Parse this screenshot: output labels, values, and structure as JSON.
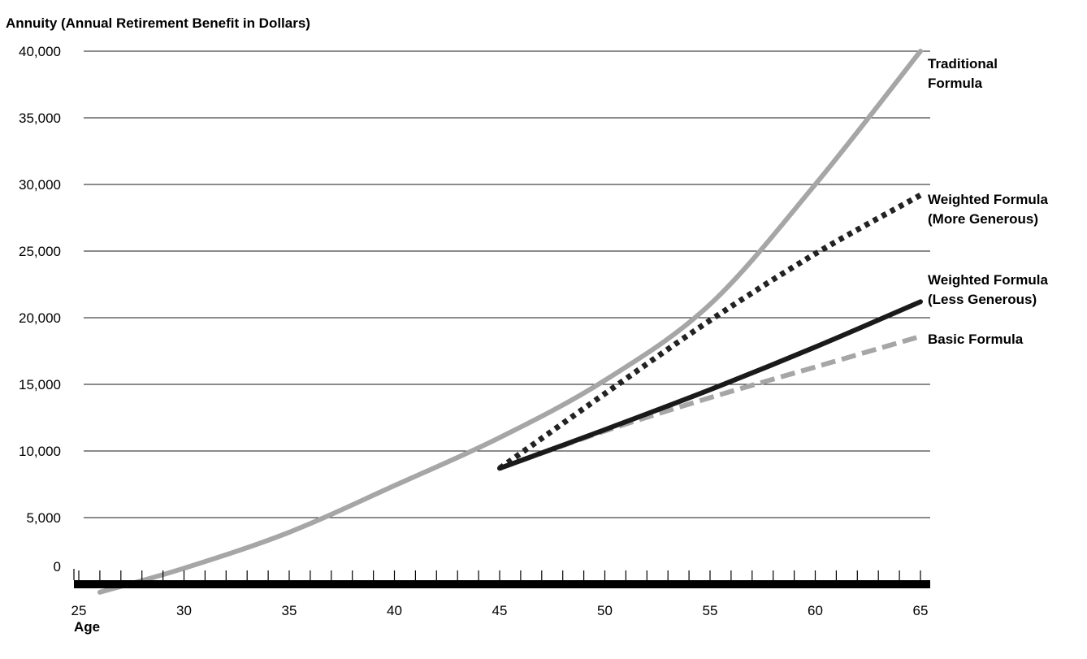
{
  "chart_data": {
    "type": "line",
    "title": "Annuity (Annual Retirement Benefit in Dollars)",
    "xlabel": "Age",
    "ylabel": "",
    "xlim": [
      25,
      65
    ],
    "ylim": [
      0,
      40000
    ],
    "x_ticks": [
      "25",
      "30",
      "35",
      "40",
      "45",
      "50",
      "55",
      "60",
      "65"
    ],
    "y_ticks": [
      "0",
      "5,000",
      "10,000",
      "15,000",
      "20,000",
      "25,000",
      "30,000",
      "35,000",
      "40,000"
    ],
    "grid": true,
    "legend": "labels at right end of each line",
    "series": [
      {
        "name": "Traditional Formula",
        "label_lines": [
          "Traditional",
          "Formula"
        ],
        "color": "#a6a6a6",
        "style": "solid",
        "x": [
          26,
          30,
          35,
          40,
          45,
          50,
          55,
          60,
          65
        ],
        "values": [
          -600,
          1200,
          3900,
          7400,
          11000,
          15300,
          21000,
          30000,
          40000
        ]
      },
      {
        "name": "Weighted Formula (More Generous)",
        "label_lines": [
          "Weighted Formula",
          "(More Generous)"
        ],
        "color": "#222222",
        "style": "dotted",
        "x": [
          45,
          50,
          55,
          60,
          65
        ],
        "values": [
          8700,
          14300,
          19800,
          24800,
          29200
        ]
      },
      {
        "name": "Weighted Formula (Less Generous)",
        "label_lines": [
          "Weighted Formula",
          "(Less Generous)"
        ],
        "color": "#1a1a1a",
        "style": "solid",
        "x": [
          45,
          50,
          55,
          60,
          65
        ],
        "values": [
          8700,
          11600,
          14600,
          17800,
          21200
        ]
      },
      {
        "name": "Basic Formula",
        "label_lines": [
          "Basic Formula"
        ],
        "color": "#a6a6a6",
        "style": "dashed",
        "x": [
          45,
          50,
          55,
          60,
          65
        ],
        "values": [
          8700,
          11500,
          14000,
          16300,
          18600
        ]
      }
    ]
  }
}
